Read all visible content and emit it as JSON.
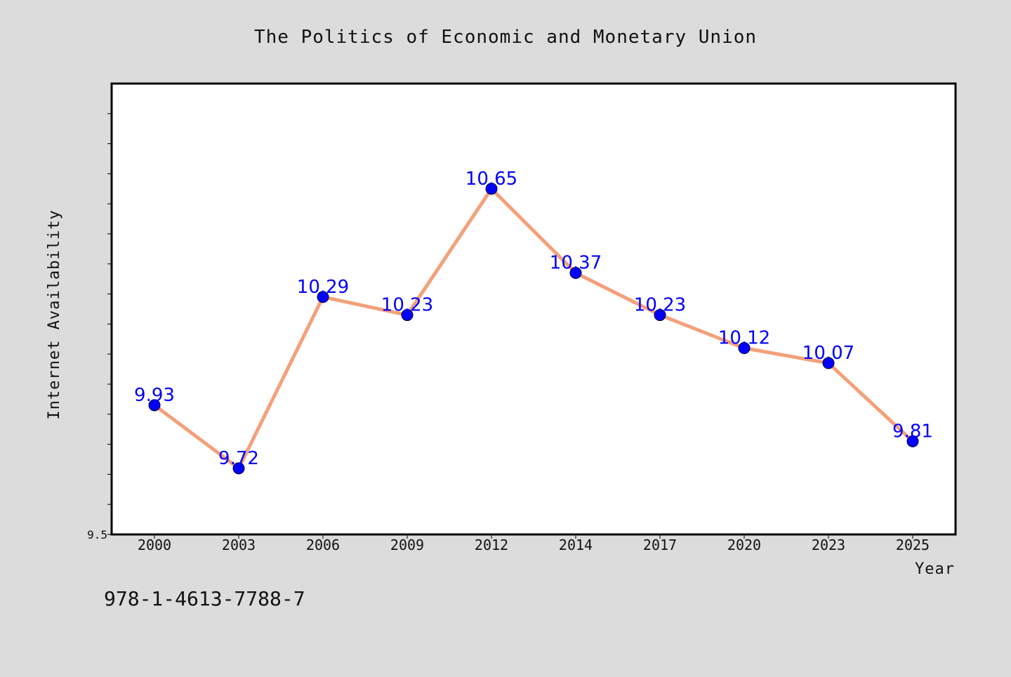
{
  "chart_data": {
    "type": "line",
    "title": "The Politics of Economic and Monetary Union",
    "xlabel": "Year",
    "ylabel": "Internet Availability",
    "categories": [
      "2000",
      "2003",
      "2006",
      "2009",
      "2012",
      "2014",
      "2017",
      "2020",
      "2023",
      "2025"
    ],
    "series": [
      {
        "values": [
          9.93,
          9.72,
          10.29,
          10.23,
          10.65,
          10.37,
          10.23,
          10.12,
          10.07,
          9.81
        ],
        "labels": [
          "9.93",
          "9.72",
          "10.29",
          "10.23",
          "10.65",
          "10.37",
          "10.23",
          "10.12",
          "10.07",
          "9.81"
        ],
        "line_color": "#f4a07a",
        "marker_color": "#0000ff"
      }
    ],
    "ylim": [
      9.5,
      11.0
    ],
    "yticks_labeled": [
      "9.5"
    ],
    "grid": false,
    "legend": "none"
  },
  "footer_text": "978-1-4613-7788-7",
  "colors": {
    "background": "#dcdcdc",
    "plot_background": "#ffffff",
    "label_color": "#0000ff"
  }
}
